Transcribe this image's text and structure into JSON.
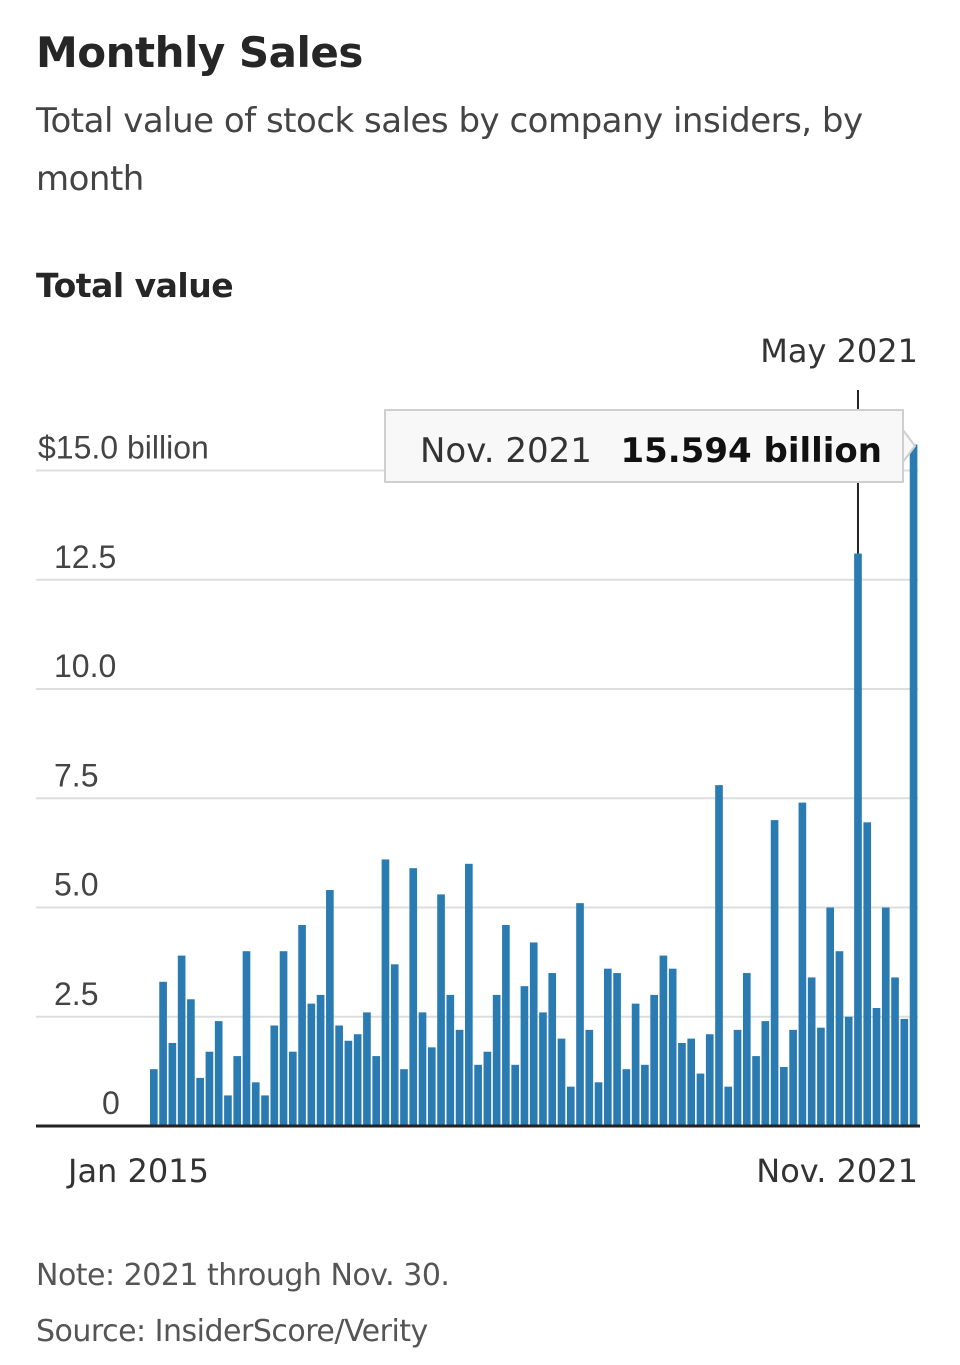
{
  "header": {
    "title": "Monthly Sales",
    "subtitle": "Total value of stock sales by company insiders, by month",
    "axis_title": "Total value"
  },
  "footer": {
    "note": "Note: 2021 through Nov. 30.",
    "source": "Source: InsiderScore/Verity"
  },
  "colors": {
    "bar": "#2b7bb3",
    "grid": "#dddddd",
    "axis": "#222222"
  },
  "chart_data": {
    "type": "bar",
    "title": "Monthly Sales",
    "ylabel": "Total value",
    "xlabel": "",
    "ylim": [
      0,
      15.6
    ],
    "grid": true,
    "y_ticks": [
      {
        "value": 0,
        "label": "0"
      },
      {
        "value": 2.5,
        "label": "2.5"
      },
      {
        "value": 5.0,
        "label": "5.0"
      },
      {
        "value": 7.5,
        "label": "7.5"
      },
      {
        "value": 10.0,
        "label": "10.0"
      },
      {
        "value": 12.5,
        "label": "12.5"
      },
      {
        "value": 15.0,
        "label": "$15.0 billion"
      }
    ],
    "x_tick_labels": {
      "first": "Jan 2015",
      "last": "Nov. 2021"
    },
    "start": "Jan 2015",
    "end": "Nov. 2021",
    "unit": "billion dollars",
    "values": [
      1.3,
      3.3,
      1.9,
      3.9,
      2.9,
      1.1,
      1.7,
      2.4,
      0.7,
      1.6,
      4.0,
      1.0,
      0.7,
      2.3,
      4.0,
      1.7,
      4.6,
      2.8,
      3.0,
      5.4,
      2.3,
      1.95,
      2.1,
      2.6,
      1.6,
      6.1,
      3.7,
      1.3,
      5.9,
      2.6,
      1.8,
      5.3,
      3.0,
      2.2,
      6.0,
      1.4,
      1.7,
      3.0,
      4.6,
      1.4,
      3.2,
      4.2,
      2.6,
      3.5,
      2.0,
      0.9,
      5.1,
      2.2,
      1.0,
      3.6,
      3.5,
      1.3,
      2.8,
      1.4,
      3.0,
      3.9,
      3.6,
      1.9,
      2.0,
      1.2,
      2.1,
      7.8,
      0.9,
      2.2,
      3.5,
      1.6,
      2.4,
      7.0,
      1.35,
      2.2,
      7.4,
      3.4,
      2.25,
      5.0,
      4.0,
      2.5,
      13.1,
      6.95,
      2.7,
      5.0,
      3.4,
      2.45,
      15.594
    ],
    "annotations": [
      {
        "label": "May 2021",
        "index": 76
      },
      {
        "label": "Nov. 2021",
        "value_label": "15.594 billion",
        "index": 82
      }
    ]
  }
}
